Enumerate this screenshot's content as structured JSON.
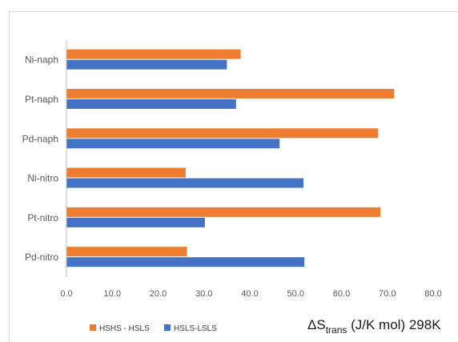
{
  "chart_data": {
    "type": "bar",
    "orientation": "horizontal",
    "categories": [
      "Ni-naph",
      "Pt-naph",
      "Pd-naph",
      "Ni-nitro",
      "Pt-nitro",
      "Pd-nitro"
    ],
    "series": [
      {
        "name": "HSHS - HSLS",
        "color": "#ED7D31",
        "values": [
          38.0,
          71.5,
          68.0,
          26.0,
          68.5,
          26.3
        ]
      },
      {
        "name": "HSLS-LSLS",
        "color": "#4472C4",
        "values": [
          35.0,
          37.0,
          46.5,
          51.7,
          30.2,
          51.9
        ]
      }
    ],
    "xlim": [
      0,
      80
    ],
    "xticks": [
      "0.0",
      "10.0",
      "20.0",
      "30.0",
      "40.0",
      "50.0",
      "60.0",
      "70.0",
      "80.0"
    ],
    "axis_title": {
      "main": "ΔS",
      "sub": "trans",
      "rest": " (J/K mol) 298K"
    },
    "legend_position": "bottom-left",
    "grid": false
  }
}
